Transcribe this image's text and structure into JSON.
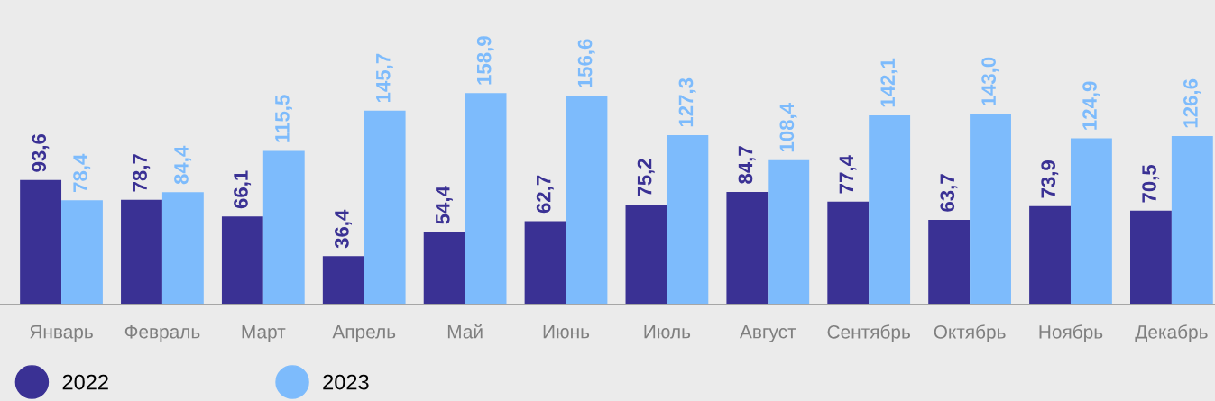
{
  "chart_data": {
    "type": "bar",
    "categories": [
      "Январь",
      "Февраль",
      "Март",
      "Апрель",
      "Май",
      "Июнь",
      "Июль",
      "Август",
      "Сентябрь",
      "Октябрь",
      "Ноябрь",
      "Декабрь"
    ],
    "series": [
      {
        "name": "2022",
        "color": "#3a3194",
        "values": [
          93.6,
          78.7,
          66.1,
          36.4,
          54.4,
          62.7,
          75.2,
          84.7,
          77.4,
          63.7,
          73.9,
          70.5
        ],
        "value_labels": [
          "93,6",
          "78,7",
          "66,1",
          "36,4",
          "54,4",
          "62,7",
          "75,2",
          "84,7",
          "77,4",
          "63,7",
          "73,9",
          "70,5"
        ]
      },
      {
        "name": "2023",
        "color": "#7dbbfc",
        "values": [
          78.4,
          84.4,
          115.5,
          145.7,
          158.9,
          156.6,
          127.3,
          108.4,
          142.1,
          143.0,
          124.9,
          126.6
        ],
        "value_labels": [
          "78,4",
          "84,4",
          "115,5",
          "145,7",
          "158,9",
          "156,6",
          "127,3",
          "108,4",
          "142,1",
          "143,0",
          "124,9",
          "126,6"
        ]
      }
    ],
    "legend": "bottom",
    "marker": "circle",
    "tick_labels": "x"
  }
}
